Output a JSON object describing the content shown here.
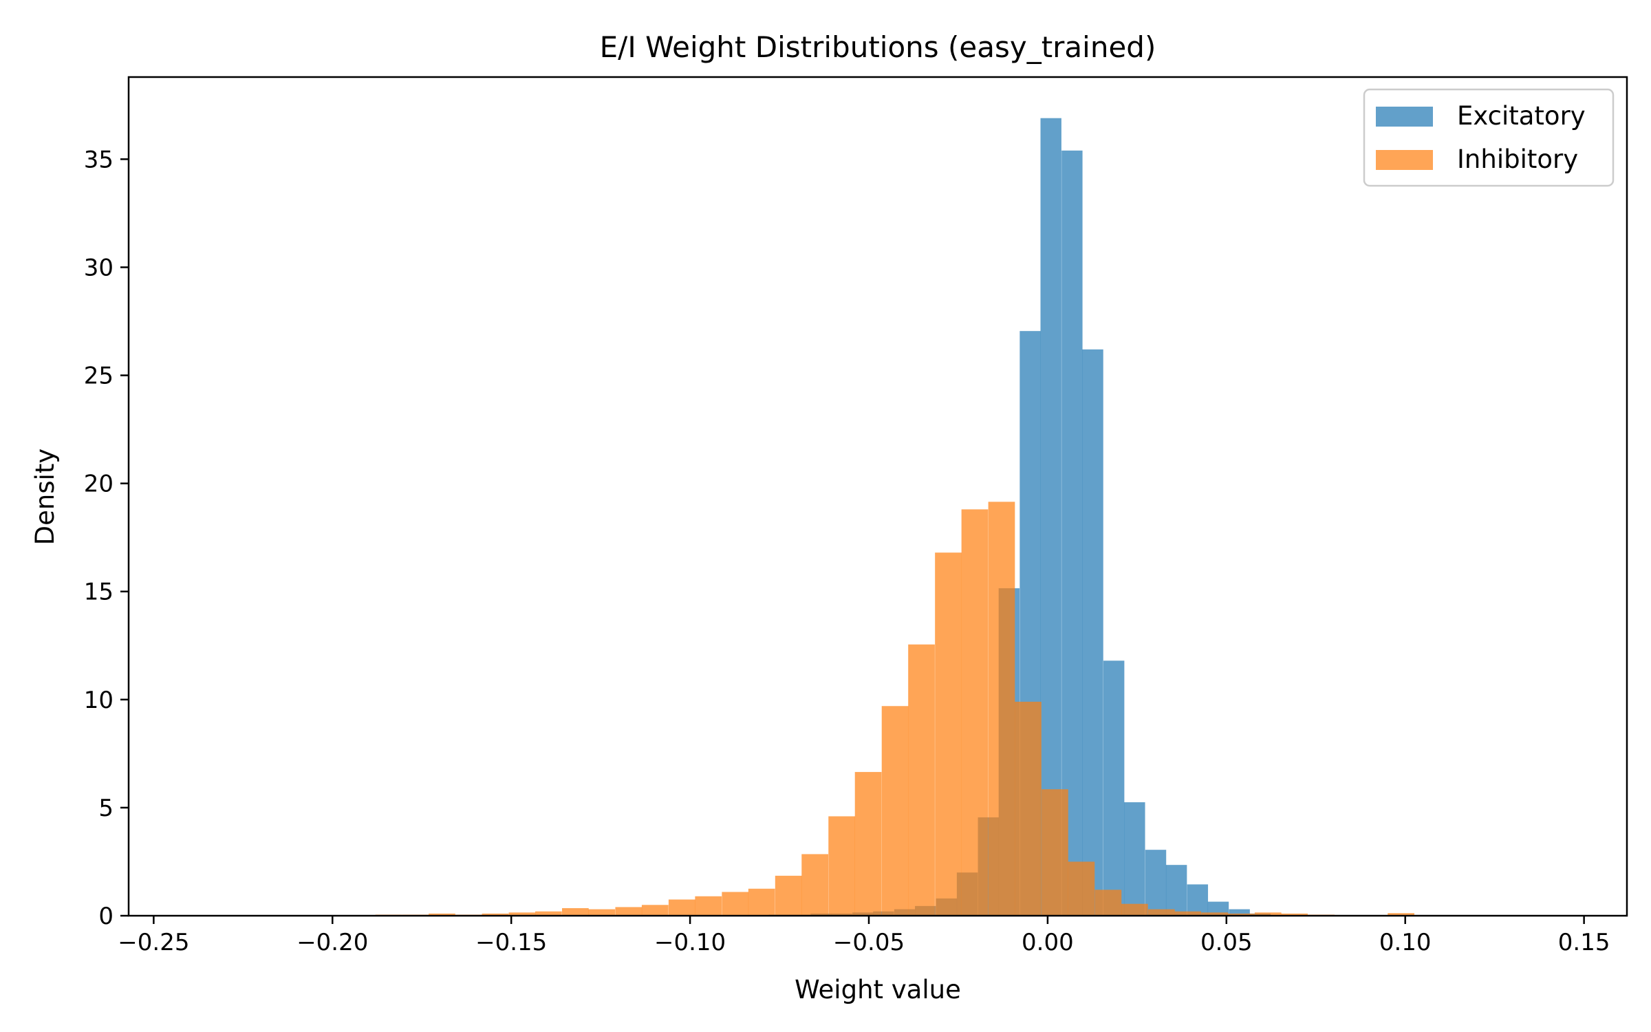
{
  "chart_data": {
    "type": "bar",
    "title": "E/I Weight Distributions (easy_trained)",
    "xlabel": "Weight value",
    "ylabel": "Density",
    "xlim": [
      -0.257,
      0.162
    ],
    "ylim": [
      0,
      38.8
    ],
    "xticks": [
      -0.25,
      -0.2,
      -0.15,
      -0.1,
      -0.05,
      0.0,
      0.05,
      0.1,
      0.15
    ],
    "xtick_labels": [
      "−0.25",
      "−0.20",
      "−0.15",
      "−0.10",
      "−0.05",
      "0.00",
      "0.05",
      "0.10",
      "0.15"
    ],
    "yticks": [
      0,
      5,
      10,
      15,
      20,
      25,
      30,
      35
    ],
    "ytick_labels": [
      "0",
      "5",
      "10",
      "15",
      "20",
      "25",
      "30",
      "35"
    ],
    "grid": false,
    "legend_position": "top-right",
    "series": [
      {
        "name": "Excitatory",
        "color": "#1f77b4",
        "opacity": 0.7,
        "bin_width": 0.00585,
        "bin_starts": [
          -0.078,
          -0.0722,
          -0.0663,
          -0.0605,
          -0.0546,
          -0.0488,
          -0.0429,
          -0.0371,
          -0.0312,
          -0.0254,
          -0.0195,
          -0.0137,
          -0.0078,
          -0.002,
          0.0039,
          0.0097,
          0.0156,
          0.0214,
          0.0273,
          0.0331,
          0.039,
          0.0448,
          0.0507,
          0.0565
        ],
        "values": [
          0.05,
          0.05,
          0.1,
          0.1,
          0.15,
          0.2,
          0.3,
          0.45,
          0.8,
          2.0,
          4.55,
          15.15,
          27.05,
          36.9,
          35.4,
          26.2,
          11.8,
          5.25,
          3.05,
          2.35,
          1.45,
          0.65,
          0.3,
          0.1
        ]
      },
      {
        "name": "Inhibitory",
        "color": "#ff7f0e",
        "opacity": 0.7,
        "bin_width": 0.00745,
        "bin_starts": [
          -0.188,
          -0.1805,
          -0.1731,
          -0.1656,
          -0.1582,
          -0.1507,
          -0.1433,
          -0.1358,
          -0.1284,
          -0.1209,
          -0.1135,
          -0.106,
          -0.0986,
          -0.0911,
          -0.0837,
          -0.0762,
          -0.0688,
          -0.0613,
          -0.0539,
          -0.0464,
          -0.039,
          -0.0315,
          -0.0241,
          -0.0166,
          -0.0092,
          -0.0017,
          0.0057,
          0.0132,
          0.0206,
          0.0281,
          0.0355,
          0.043,
          0.0504,
          0.0579,
          0.0653,
          0.0728,
          0.0802,
          0.0877,
          0.0951
        ],
        "values": [
          0.05,
          0.05,
          0.1,
          0.05,
          0.1,
          0.15,
          0.2,
          0.35,
          0.3,
          0.4,
          0.5,
          0.75,
          0.9,
          1.1,
          1.25,
          1.85,
          2.85,
          4.6,
          6.65,
          9.7,
          12.55,
          16.8,
          18.8,
          19.15,
          9.9,
          5.85,
          2.5,
          1.2,
          0.55,
          0.3,
          0.2,
          0.15,
          0.1,
          0.15,
          0.1,
          0.05,
          0.0,
          0.0,
          0.12
        ]
      }
    ]
  }
}
